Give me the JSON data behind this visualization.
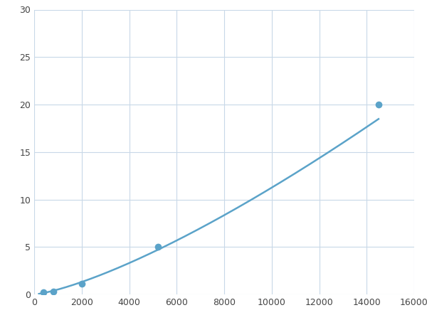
{
  "x_points": [
    400,
    800,
    2000,
    5200,
    14500
  ],
  "y_points": [
    0.2,
    0.3,
    1.1,
    5.0,
    20.0
  ],
  "line_color": "#5ba3c9",
  "marker_color": "#5ba3c9",
  "marker_size": 7,
  "line_width": 1.8,
  "xlim": [
    0,
    16000
  ],
  "ylim": [
    0,
    30
  ],
  "xticks": [
    0,
    2000,
    4000,
    6000,
    8000,
    10000,
    12000,
    14000,
    16000
  ],
  "yticks": [
    0,
    5,
    10,
    15,
    20,
    25,
    30
  ],
  "grid_color": "#c8d8e8",
  "background_color": "#ffffff",
  "figsize": [
    6.0,
    4.5
  ],
  "dpi": 100
}
